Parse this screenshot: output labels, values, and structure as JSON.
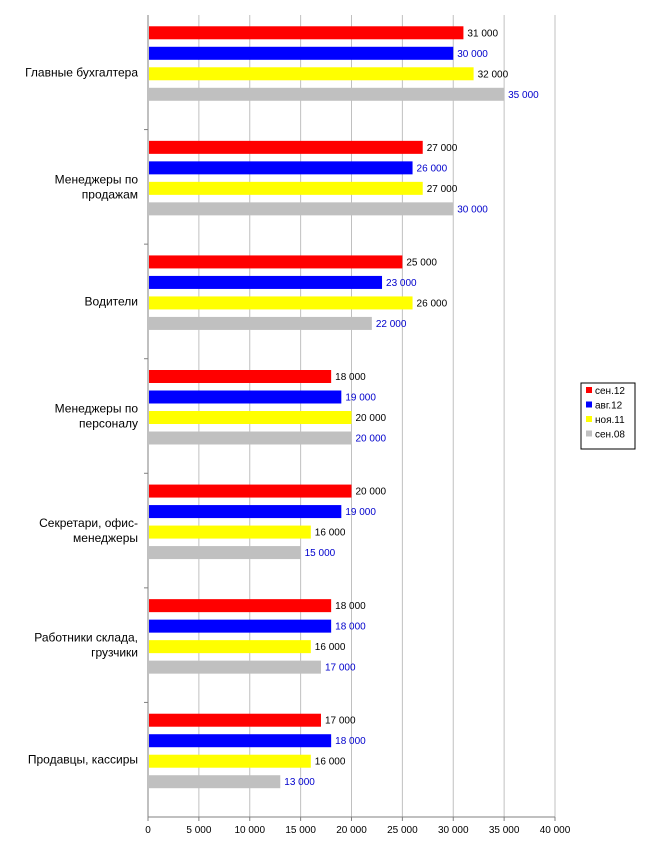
{
  "chart_data": {
    "type": "bar",
    "orientation": "horizontal",
    "categories": [
      "Главные бухгалтера",
      "Менеджеры по продажам",
      "Водители",
      "Менеджеры по персоналу",
      "Секретари, офис-менеджеры",
      "Работники склада, грузчики",
      "Продавцы, кассиры"
    ],
    "category_label_lines": [
      [
        "Главные бухгалтера"
      ],
      [
        "Менеджеры по",
        "продажам"
      ],
      [
        "Водители"
      ],
      [
        "Менеджеры по",
        "персоналу"
      ],
      [
        "Секретари, офис-",
        "менеджеры"
      ],
      [
        "Работники склада,",
        "грузчики"
      ],
      [
        "Продавцы, кассиры"
      ]
    ],
    "series": [
      {
        "name": "сен.12",
        "color": "#ff0000",
        "label_color": "#000000",
        "values": [
          31000,
          27000,
          25000,
          18000,
          20000,
          18000,
          17000
        ],
        "labels": [
          "31 000",
          "27 000",
          "25 000",
          "18 000",
          "20 000",
          "18 000",
          "17 000"
        ]
      },
      {
        "name": "авг.12",
        "color": "#0000ff",
        "label_color": "#0000cc",
        "values": [
          30000,
          26000,
          23000,
          19000,
          19000,
          18000,
          18000
        ],
        "labels": [
          "30 000",
          "26 000",
          "23 000",
          "19 000",
          "19 000",
          "18 000",
          "18 000"
        ]
      },
      {
        "name": "ноя.11",
        "color": "#ffff00",
        "label_color": "#000000",
        "values": [
          32000,
          27000,
          26000,
          20000,
          16000,
          16000,
          16000
        ],
        "labels": [
          "32 000",
          "27 000",
          "26 000",
          "20 000",
          "16 000",
          "16 000",
          "16 000"
        ]
      },
      {
        "name": "сен.08",
        "color": "#c0c0c0",
        "label_color": "#0000cc",
        "values": [
          35000,
          30000,
          22000,
          20000,
          15000,
          17000,
          13000
        ],
        "labels": [
          "35 000",
          "30 000",
          "22 000",
          "20 000",
          "15 000",
          "17 000",
          "13 000"
        ]
      }
    ],
    "x_ticks": [
      0,
      5000,
      10000,
      15000,
      20000,
      25000,
      30000,
      35000,
      40000
    ],
    "x_tick_labels": [
      "0",
      "5 000",
      "10 000",
      "15 000",
      "20 000",
      "25 000",
      "30 000",
      "35 000",
      "40 000"
    ],
    "xlim": [
      0,
      40000
    ],
    "xlabel": "",
    "ylabel": "",
    "title": "",
    "grid": true,
    "legend_position": "right"
  }
}
